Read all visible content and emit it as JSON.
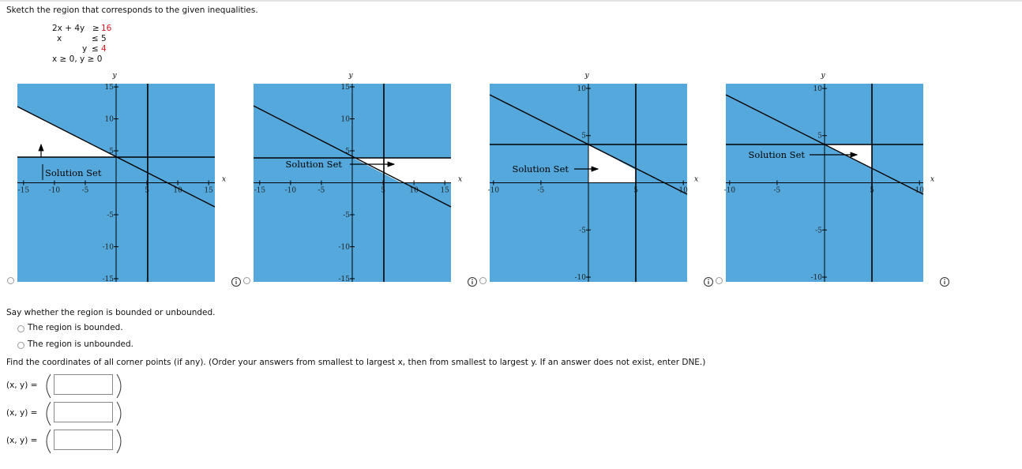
{
  "prompt": "Sketch the region that corresponds to the given inequalities.",
  "inequalities": [
    {
      "lhs": "2x + 4y",
      "op": "≥",
      "rhs": 16,
      "rhs_color": "#e0141e"
    },
    {
      "lhs": "x",
      "op": "≤",
      "rhs": 5,
      "rhs_color": "#111111"
    },
    {
      "lhs": "y",
      "op": "≤",
      "rhs": 4,
      "rhs_color": "#e0141e"
    },
    {
      "lhs": "x ≥ 0, y ≥ 0"
    }
  ],
  "graphs": [
    {
      "x_label": "x",
      "y_label": "y",
      "solution_label": "Solution Set",
      "xlim": [
        -16,
        16
      ],
      "ylim": [
        -15.5,
        15.5
      ],
      "xticks": [
        -15,
        -10,
        -5,
        5,
        10,
        15
      ],
      "yticks": [
        -15,
        -10,
        -5,
        5,
        10,
        15
      ],
      "fill": "#55a8db"
    },
    {
      "x_label": "x",
      "y_label": "y",
      "solution_label": "Solution Set",
      "xlim": [
        -16,
        16
      ],
      "ylim": [
        -15.5,
        15.5
      ],
      "xticks": [
        -15,
        -10,
        -5,
        5,
        10,
        15
      ],
      "yticks": [
        -15,
        -10,
        -5,
        5,
        10,
        15
      ],
      "fill": "#55a8db"
    },
    {
      "x_label": "x",
      "y_label": "y",
      "solution_label": "Solution Set",
      "xlim": [
        -10.4,
        10.4
      ],
      "ylim": [
        -10.5,
        10.5
      ],
      "xticks": [
        -10,
        -5,
        5,
        10
      ],
      "yticks": [
        -10,
        -5,
        5,
        10
      ],
      "fill": "#55a8db"
    },
    {
      "x_label": "x",
      "y_label": "y",
      "solution_label": "Solution Set",
      "xlim": [
        -10.4,
        10.4
      ],
      "ylim": [
        -10.5,
        10.5
      ],
      "xticks": [
        -10,
        -5,
        5,
        10
      ],
      "yticks": [
        -10,
        -5,
        5,
        10
      ],
      "fill": "#55a8db"
    }
  ],
  "bounded_question": {
    "text": "Say whether the region is bounded or unbounded.",
    "options": [
      "The region is bounded.",
      "The region is unbounded."
    ]
  },
  "corners_question": {
    "text": "Find the coordinates of all corner points (if any). (Order your answers from smallest to largest x, then from smallest to largest y. If an answer does not exist, enter DNE.)",
    "answers": [
      "(x, y) =",
      "(x, y) =",
      "(x, y) ="
    ]
  }
}
